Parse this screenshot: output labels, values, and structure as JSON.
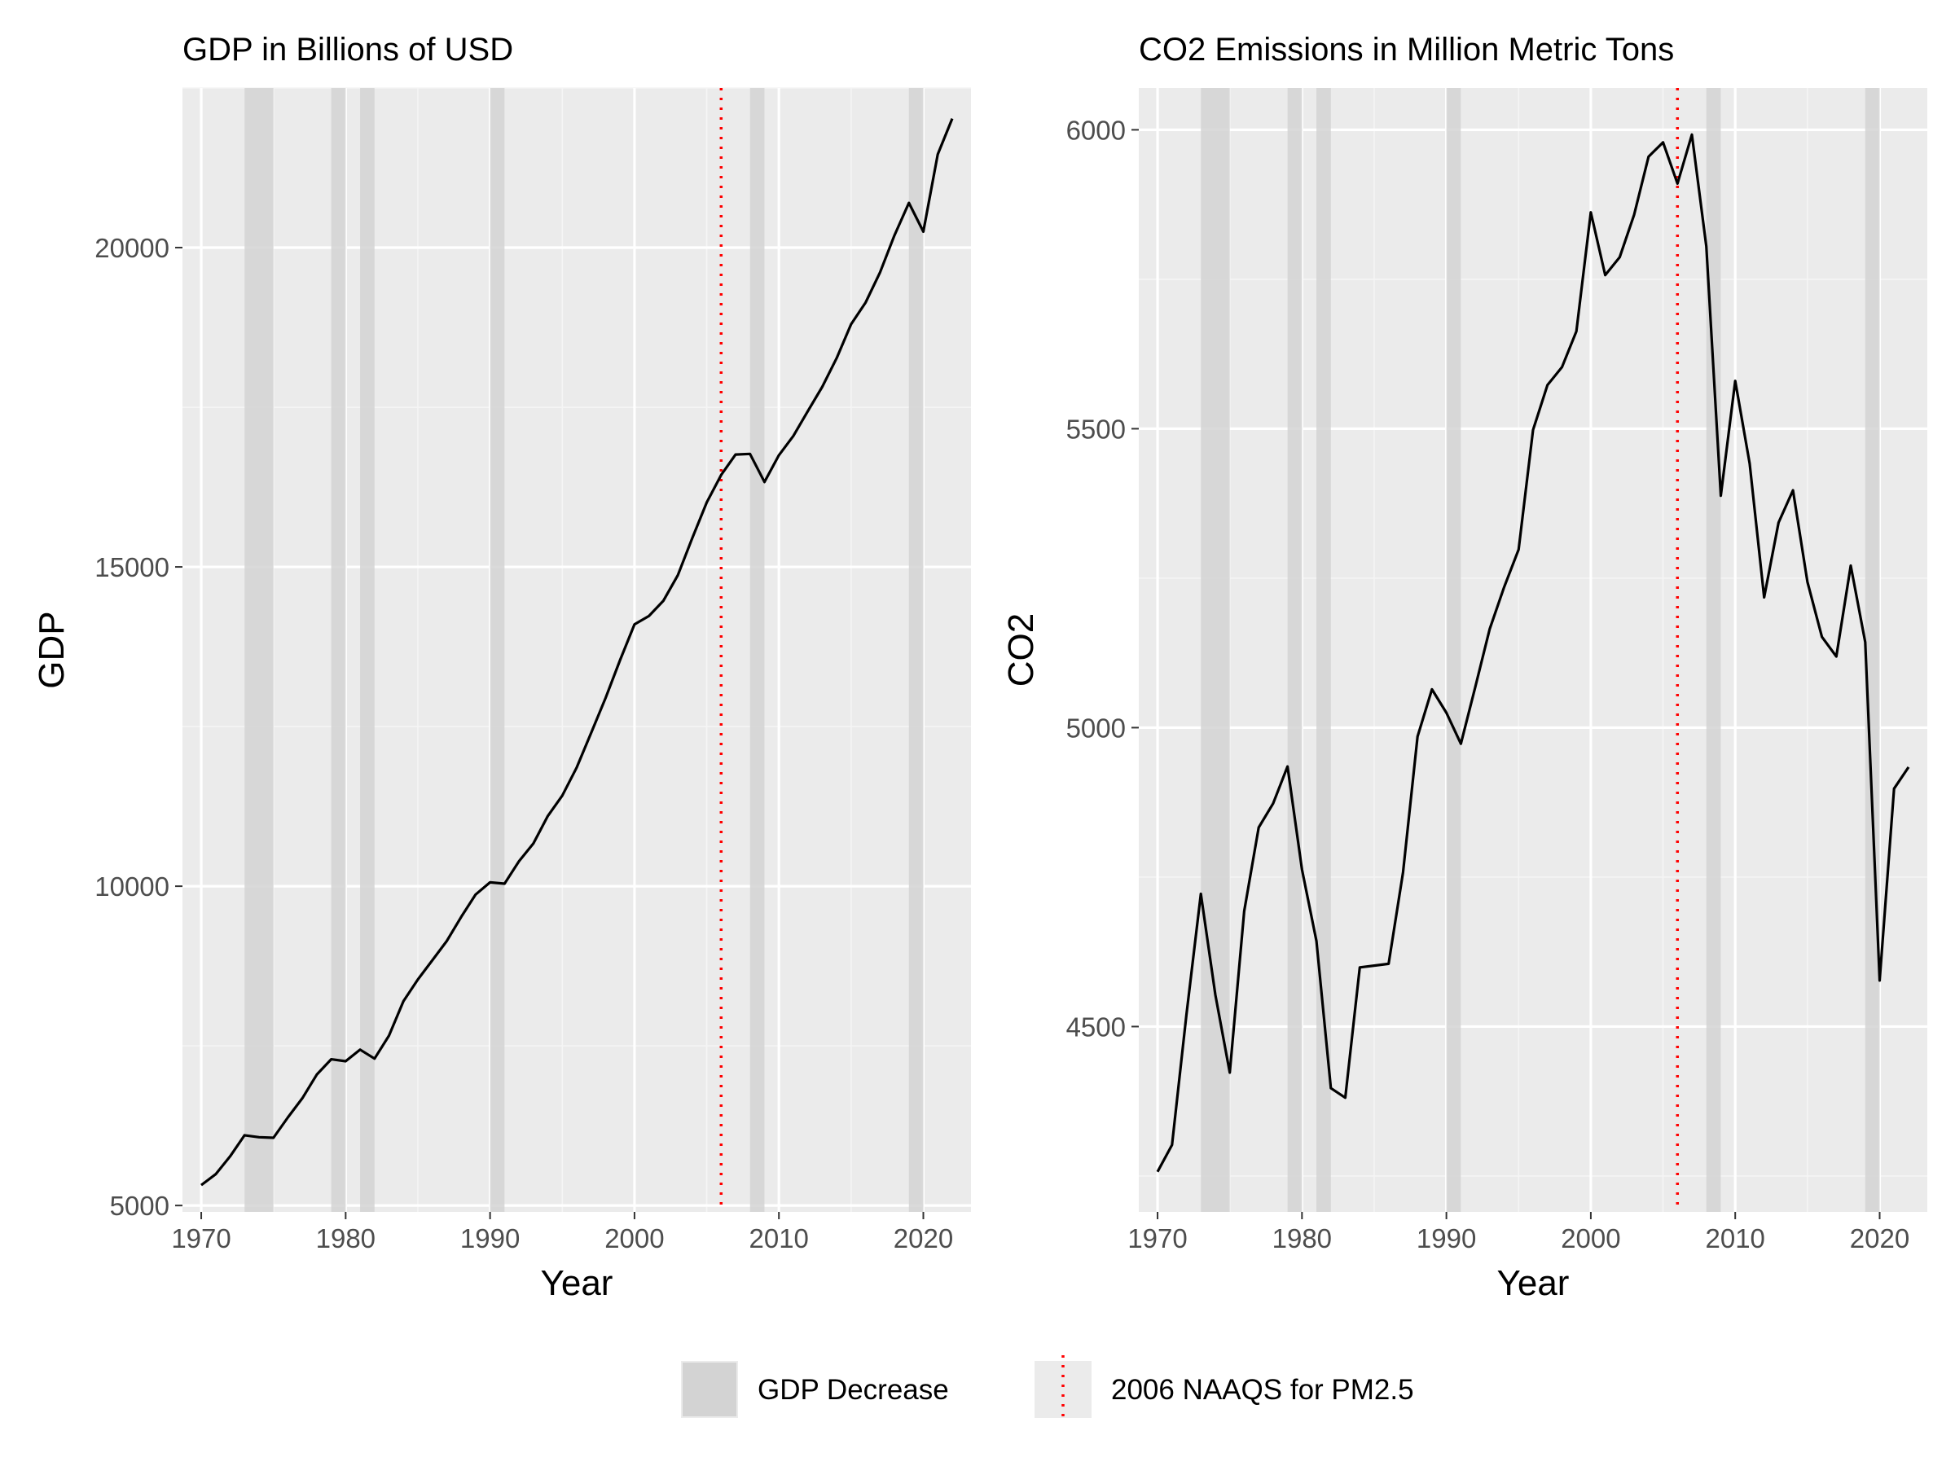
{
  "colors": {
    "panel_background": "#EBEBEB",
    "grid_major": "#FFFFFF",
    "grid_minor": "#F5F5F5",
    "line": "#000000",
    "recession_band": "#D3D3D3",
    "reference_line": "#FF0000",
    "tick_label": "#4D4D4D"
  },
  "legend": {
    "position": "bottom",
    "items": [
      {
        "label": "GDP Decrease",
        "key": "gray-band-swatch"
      },
      {
        "label": "2006 NAAQS for PM2.5",
        "key": "red-dotted-line-swatch"
      }
    ]
  },
  "chart_data": [
    {
      "type": "line",
      "title": "GDP in Billions of USD",
      "xlabel": "Year",
      "ylabel": "GDP",
      "xlim": [
        1968.7,
        2023.3
      ],
      "ylim": [
        4900,
        22500
      ],
      "x_ticks": [
        1970,
        1980,
        1990,
        2000,
        2010,
        2020
      ],
      "x_tick_labels": [
        "1970",
        "1980",
        "1990",
        "2000",
        "2010",
        "2020"
      ],
      "y_ticks": [
        5000,
        10000,
        15000,
        20000
      ],
      "y_tick_labels": [
        "5000",
        "10000",
        "15000",
        "20000"
      ],
      "y_minor_ticks": [
        7500,
        12500,
        17500,
        22500
      ],
      "grid": true,
      "x": [
        1970,
        1971,
        1972,
        1973,
        1974,
        1975,
        1976,
        1977,
        1978,
        1979,
        1980,
        1981,
        1982,
        1983,
        1984,
        1985,
        1986,
        1987,
        1988,
        1989,
        1990,
        1991,
        1992,
        1993,
        1994,
        1995,
        1996,
        1997,
        1998,
        1999,
        2000,
        2001,
        2002,
        2003,
        2004,
        2005,
        2006,
        2007,
        2008,
        2009,
        2010,
        2011,
        2012,
        2013,
        2014,
        2015,
        2016,
        2017,
        2018,
        2019,
        2020,
        2021,
        2022
      ],
      "series": [
        {
          "values": [
            5320,
            5490,
            5770,
            6100,
            6070,
            6060,
            6380,
            6680,
            7050,
            7290,
            7260,
            7440,
            7300,
            7660,
            8200,
            8540,
            8840,
            9140,
            9520,
            9870,
            10060,
            10040,
            10390,
            10670,
            11100,
            11420,
            11860,
            12400,
            12950,
            13540,
            14100,
            14230,
            14470,
            14870,
            15450,
            16010,
            16440,
            16760,
            16770,
            16330,
            16750,
            17050,
            17440,
            17820,
            18270,
            18800,
            19140,
            19610,
            20190,
            20700,
            20250,
            21460,
            22020
          ]
        }
      ],
      "shaded_periods": [
        [
          1973,
          1975
        ],
        [
          1979,
          1980
        ],
        [
          1981,
          1982
        ],
        [
          1990,
          1991
        ],
        [
          2008,
          2009
        ],
        [
          2019,
          2020
        ]
      ],
      "reference_line_x": 2006
    },
    {
      "type": "line",
      "title": "CO2 Emissions in Million Metric Tons",
      "xlabel": "Year",
      "ylabel": "CO2",
      "xlim": [
        1968.7,
        2023.3
      ],
      "ylim": [
        4190,
        6070
      ],
      "x_ticks": [
        1970,
        1980,
        1990,
        2000,
        2010,
        2020
      ],
      "x_tick_labels": [
        "1970",
        "1980",
        "1990",
        "2000",
        "2010",
        "2020"
      ],
      "y_ticks": [
        4500,
        5000,
        5500,
        6000
      ],
      "y_tick_labels": [
        "4500",
        "5000",
        "5500",
        "6000"
      ],
      "y_minor_ticks": [
        4250,
        4750,
        5250,
        5750
      ],
      "grid": true,
      "x": [
        1970,
        1971,
        1972,
        1973,
        1974,
        1975,
        1976,
        1977,
        1978,
        1979,
        1980,
        1981,
        1982,
        1983,
        1984,
        1985,
        1986,
        1987,
        1988,
        1989,
        1990,
        1991,
        1992,
        1993,
        1994,
        1995,
        1996,
        1997,
        1998,
        1999,
        2000,
        2001,
        2002,
        2003,
        2004,
        2005,
        2006,
        2007,
        2008,
        2009,
        2010,
        2011,
        2012,
        2013,
        2014,
        2015,
        2016,
        2017,
        2018,
        2019,
        2020,
        2021,
        2022
      ],
      "series": [
        {
          "values": [
            4257,
            4302,
            4520,
            4722,
            4553,
            4423,
            4693,
            4833,
            4873,
            4935,
            4763,
            4643,
            4397,
            4381,
            4599,
            4602,
            4605,
            4758,
            4985,
            5064,
            5025,
            4973,
            5068,
            5165,
            5235,
            5298,
            5498,
            5573,
            5603,
            5663,
            5862,
            5757,
            5787,
            5858,
            5955,
            5979,
            5910,
            5992,
            5805,
            5388,
            5580,
            5442,
            5218,
            5343,
            5397,
            5244,
            5152,
            5119,
            5271,
            5143,
            4577,
            4898,
            4934
          ]
        }
      ],
      "shaded_periods": [
        [
          1973,
          1975
        ],
        [
          1979,
          1980
        ],
        [
          1981,
          1982
        ],
        [
          1990,
          1991
        ],
        [
          2008,
          2009
        ],
        [
          2019,
          2020
        ]
      ],
      "reference_line_x": 2006
    }
  ]
}
